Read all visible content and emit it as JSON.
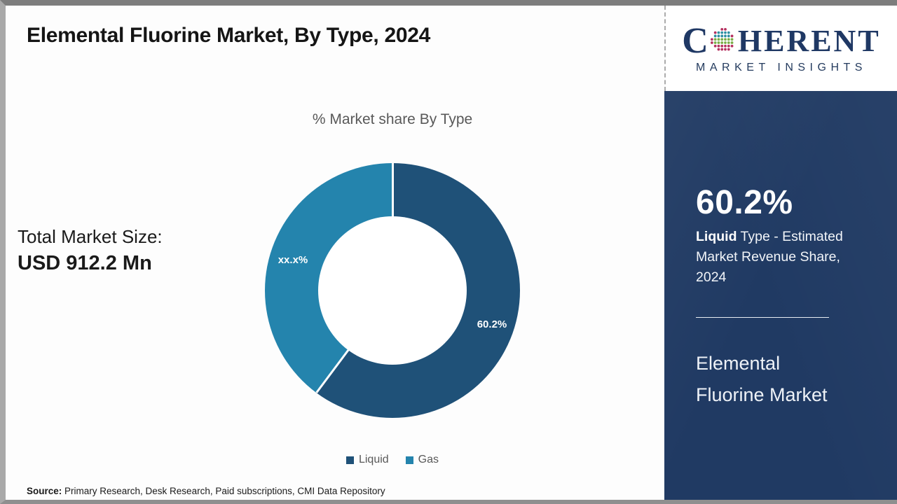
{
  "header": {
    "title": "Elemental Fluorine Market, By Type, 2024"
  },
  "logo": {
    "name_prefix": "C",
    "name_suffix": "HERENT",
    "tagline": "MARKET INSIGHTS",
    "brand_color": "#1f3864"
  },
  "left_panel": {
    "total_label": "Total Market Size:",
    "total_value": "USD 912.2 Mn"
  },
  "chart_data": {
    "type": "pie",
    "donut": true,
    "title": "% Market share By Type",
    "categories": [
      "Liquid",
      "Gas"
    ],
    "values": [
      60.2,
      39.8
    ],
    "data_labels": [
      "60.2%",
      "xx.x%"
    ],
    "colors": [
      "#1f5178",
      "#2484ad"
    ],
    "start_angle_deg": 0,
    "legend_position": "bottom"
  },
  "sidebar": {
    "background": "#203a63",
    "stat_value": "60.2%",
    "stat_desc_bold": "Liquid",
    "stat_desc_rest": " Type - Estimated Market Revenue Share, 2024",
    "product_title": "Elemental Fluorine Market"
  },
  "footer": {
    "source_label": "Source:",
    "source_text": " Primary Research, Desk Research, Paid subscriptions, CMI Data Repository"
  }
}
